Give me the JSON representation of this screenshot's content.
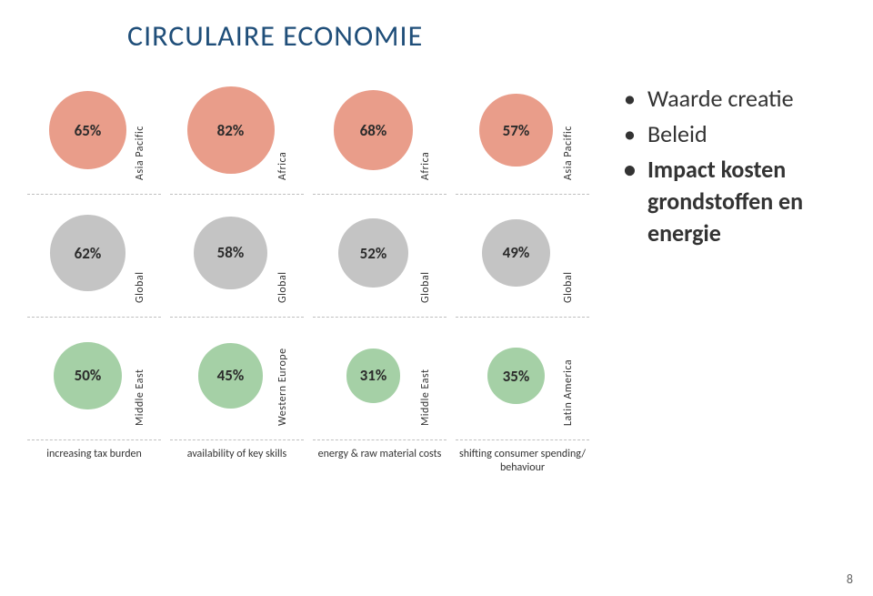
{
  "title": "CIRCULAIRE ECONOMIE",
  "page_number": "8",
  "bullets": [
    {
      "text": "Waarde creatie",
      "bold": false
    },
    {
      "text": "Beleid",
      "bold": false
    },
    {
      "text": "Impact kosten grondstoffen en energie",
      "bold": true
    }
  ],
  "chart": {
    "base_diameter": 96,
    "min_diameter": 42,
    "row_colors": [
      "#e99d8a",
      "#c4c4c4",
      "#a5d0a6"
    ],
    "percent_fontsize": 17,
    "region_fontsize": 12,
    "category_fontsize": 12,
    "columns": [
      {
        "category": "increasing tax burden",
        "rows": [
          {
            "value": 65,
            "label": "65%",
            "region": "Asia Pacific"
          },
          {
            "value": 62,
            "label": "62%",
            "region": "Global"
          },
          {
            "value": 50,
            "label": "50%",
            "region": "Middle East"
          }
        ]
      },
      {
        "category": "availability of key skills",
        "rows": [
          {
            "value": 82,
            "label": "82%",
            "region": "Africa"
          },
          {
            "value": 58,
            "label": "58%",
            "region": "Global"
          },
          {
            "value": 45,
            "label": "45%",
            "region": "Western Europe"
          }
        ]
      },
      {
        "category": "energy & raw material costs",
        "rows": [
          {
            "value": 68,
            "label": "68%",
            "region": "Africa"
          },
          {
            "value": 52,
            "label": "52%",
            "region": "Global"
          },
          {
            "value": 31,
            "label": "31%",
            "region": "Middle East"
          }
        ]
      },
      {
        "category": "shifting consumer spending/ behaviour",
        "rows": [
          {
            "value": 57,
            "label": "57%",
            "region": "Asia Pacific"
          },
          {
            "value": 49,
            "label": "49%",
            "region": "Global"
          },
          {
            "value": 35,
            "label": "35%",
            "region": "Latin America"
          }
        ]
      }
    ]
  }
}
